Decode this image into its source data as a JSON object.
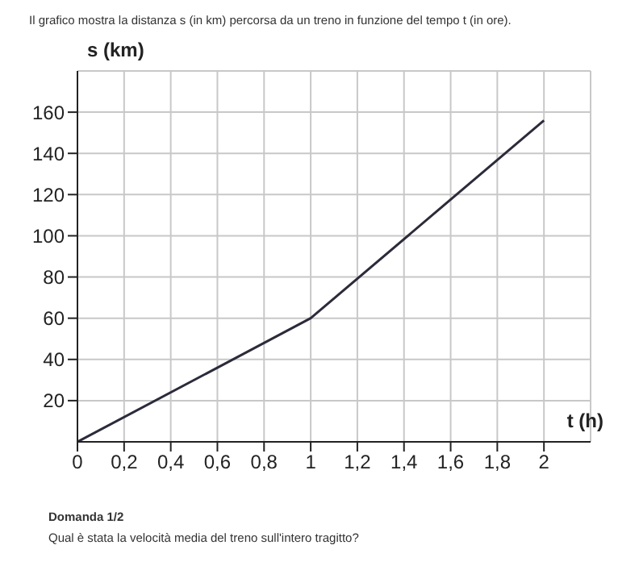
{
  "chart_data": {
    "type": "line",
    "title": "Il grafico mostra la distanza s (in km) percorsa da un treno in funzione del tempo t (in ore).",
    "xlabel": "t (h)",
    "ylabel": "s (km)",
    "x": [
      0,
      1,
      2
    ],
    "series": [
      {
        "color": "#2b2b3a",
        "values": [
          0,
          60,
          156
        ]
      }
    ],
    "xlim": [
      0,
      2.2
    ],
    "ylim": [
      0,
      180
    ],
    "xticks": [
      0,
      {
        "value": 0.2,
        "label": "0,2"
      },
      {
        "value": 0.4,
        "label": "0,4"
      },
      {
        "value": 0.6,
        "label": "0,6"
      },
      {
        "value": 0.8,
        "label": "0,8"
      },
      1,
      {
        "value": 1.2,
        "label": "1,2"
      },
      {
        "value": 1.4,
        "label": "1,4"
      },
      {
        "value": 1.6,
        "label": "1,6"
      },
      {
        "value": 1.8,
        "label": "1,8"
      },
      2
    ],
    "yticks": [
      20,
      40,
      60,
      80,
      100,
      120,
      140,
      160
    ],
    "grid": true,
    "marker": "none",
    "line_style": "solid",
    "annotations": [
      "Domanda 1/2",
      "Qual è stata la velocità media del treno sull'intero tragitto?"
    ]
  }
}
